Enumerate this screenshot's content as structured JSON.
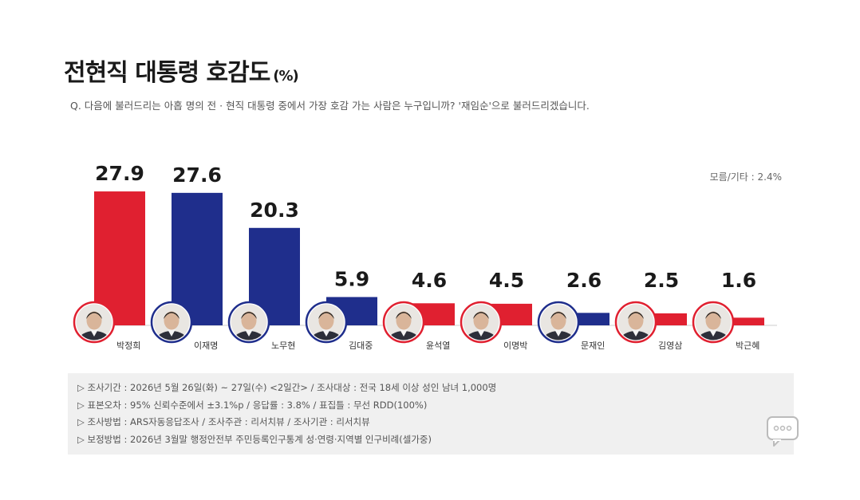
{
  "title": "전현직 대통령 호감도",
  "title_unit": "(%)",
  "question": "Q. 다음에 불러드리는 아홉 명의 전 · 현직 대통령 중에서 가장 호감 가는 사람은 누구입니까? '재임순'으로 불러드리겠습니다.",
  "etc_note": "모름/기타 : 2.4%",
  "chart_data": {
    "type": "bar",
    "title": "전현직 대통령 호감도",
    "unit": "(%)",
    "categories": [
      "박정희",
      "이재명",
      "노무현",
      "김대중",
      "윤석열",
      "이명박",
      "문재인",
      "김영삼",
      "박근혜"
    ],
    "values": [
      27.9,
      27.6,
      20.3,
      5.9,
      4.6,
      4.5,
      2.6,
      2.5,
      1.6
    ],
    "value_labels": [
      "27.9",
      "27.6",
      "20.3",
      "5.9",
      "4.6",
      "4.5",
      "2.6",
      "2.5",
      "1.6"
    ],
    "colors": [
      "#e02030",
      "#1f2e8c",
      "#1f2e8c",
      "#1f2e8c",
      "#e02030",
      "#e02030",
      "#1f2e8c",
      "#e02030",
      "#e02030"
    ],
    "ylim": [
      0,
      30
    ],
    "grid": false,
    "legend": "none"
  },
  "info": [
    "▷ 조사기간 : 2026년 5월 26일(화) ~ 27일(수) <2일간> / 조사대상 : 전국 18세 이상 성인 남녀 1,000명",
    "▷ 표본오차 : 95% 신뢰수준에서 ±3.1%p / 응답률 : 3.8% / 표집틀 : 무선 RDD(100%)",
    "▷ 조사방법 : ARS자동응답조사 / 조사주관 : 리서치뷰 / 조사기관 : 리서치뷰",
    "▷ 보정방법 : 2026년 3월말 행정안전부 주민등록인구통계 성·연령·지역별 인구비례(셀가중)"
  ],
  "icons": {
    "chat": "chat-bubble-icon",
    "avatar": "avatar-icon"
  }
}
